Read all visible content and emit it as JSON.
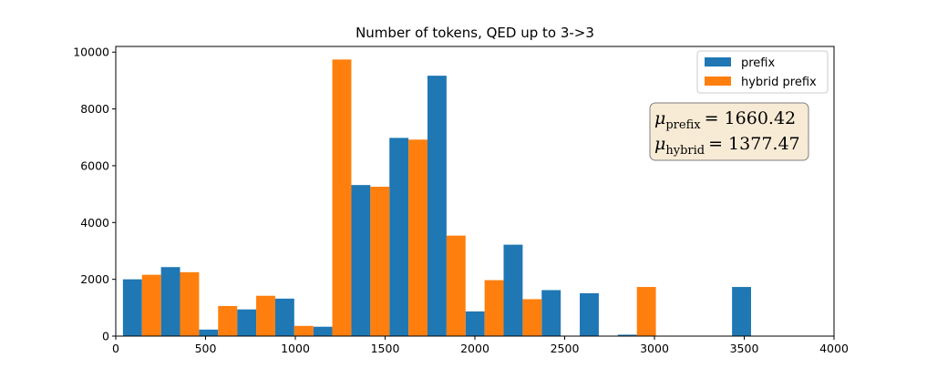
{
  "chart_data": {
    "type": "bar",
    "title": "Number of tokens, QED up to 3->3",
    "xlabel": "",
    "ylabel": "",
    "xlim": [
      0,
      4000
    ],
    "ylim": [
      0,
      10200
    ],
    "x_ticks": [
      0,
      500,
      1000,
      1500,
      2000,
      2500,
      3000,
      3500,
      4000
    ],
    "y_ticks": [
      0,
      2000,
      4000,
      6000,
      8000,
      10000
    ],
    "bin_width": 212,
    "bin_starts": [
      40,
      252,
      464,
      676,
      888,
      1100,
      1312,
      1524,
      1736,
      1948,
      2160,
      2372,
      2584,
      2796,
      3008,
      3220,
      3432,
      3644
    ],
    "grid": false,
    "legend_position": "top-right",
    "series": [
      {
        "name": "prefix",
        "color": "#1f77b4",
        "values": [
          2000,
          2430,
          230,
          940,
          1320,
          330,
          5320,
          6980,
          9170,
          870,
          3220,
          1620,
          1510,
          50,
          0,
          0,
          1730,
          0
        ]
      },
      {
        "name": "hybrid prefix",
        "color": "#ff7f0e",
        "values": [
          2160,
          2250,
          1060,
          1420,
          360,
          9740,
          5260,
          6920,
          3540,
          1970,
          1300,
          0,
          0,
          1730,
          0,
          0,
          0,
          0
        ]
      }
    ],
    "annotation": {
      "mu_symbol": "μ",
      "prefix_sub": "prefix",
      "prefix_value": "= 1660.42",
      "hybrid_sub": "hybrid",
      "hybrid_value": "= 1377.47",
      "box_color": "#f8ebd6"
    }
  }
}
